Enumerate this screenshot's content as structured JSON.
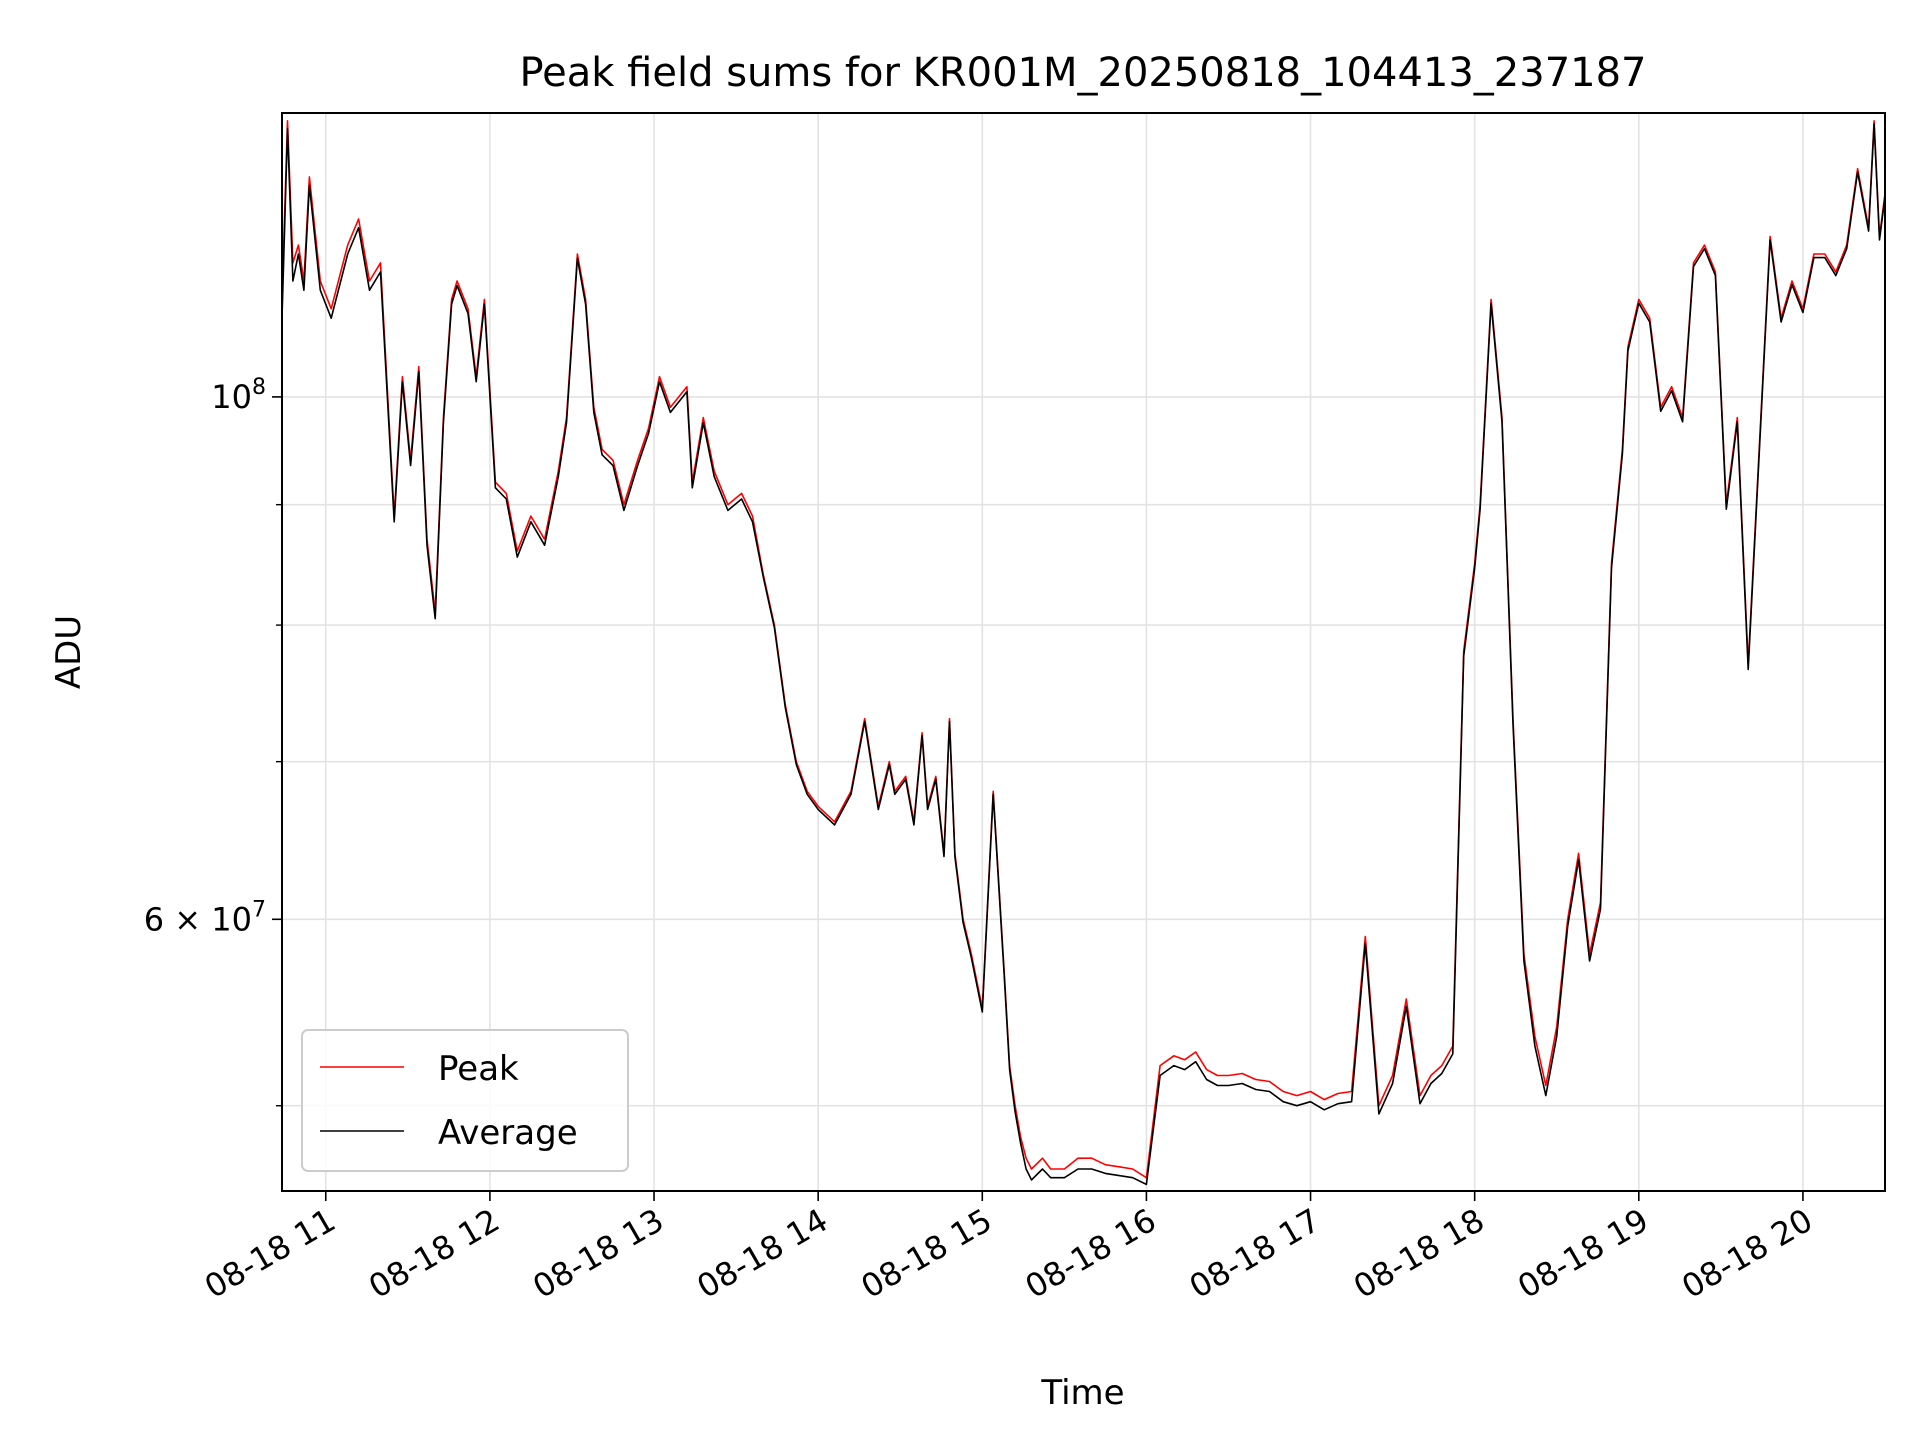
{
  "chart_data": {
    "type": "line",
    "title": "Peak field sums for KR001M_20250818_104413_237187",
    "xlabel": "Time",
    "ylabel": "ADU",
    "yscale": "log",
    "grid": true,
    "legend_position": "lower-left",
    "xlim": [
      "2025-08-18T10:44",
      "2025-08-18T20:30"
    ],
    "ylim": [
      46000000,
      132000000
    ],
    "x_ticks": [
      {
        "value": "2025-08-18T11:00",
        "label": "08-18 11"
      },
      {
        "value": "2025-08-18T12:00",
        "label": "08-18 12"
      },
      {
        "value": "2025-08-18T13:00",
        "label": "08-18 13"
      },
      {
        "value": "2025-08-18T14:00",
        "label": "08-18 14"
      },
      {
        "value": "2025-08-18T15:00",
        "label": "08-18 15"
      },
      {
        "value": "2025-08-18T16:00",
        "label": "08-18 16"
      },
      {
        "value": "2025-08-18T17:00",
        "label": "08-18 17"
      },
      {
        "value": "2025-08-18T18:00",
        "label": "08-18 18"
      },
      {
        "value": "2025-08-18T19:00",
        "label": "08-18 19"
      },
      {
        "value": "2025-08-18T20:00",
        "label": "08-18 20"
      }
    ],
    "y_major_ticks": [
      {
        "value": 100000000,
        "base": "10",
        "exp": "8"
      },
      {
        "value": 60000000,
        "base": "6 × 10",
        "exp": "7"
      }
    ],
    "y_minor_ticks": [
      50000000,
      70000000,
      80000000,
      90000000
    ],
    "x": [
      "2025-08-18T10:44",
      "2025-08-18T10:46",
      "2025-08-18T10:48",
      "2025-08-18T10:50",
      "2025-08-18T10:52",
      "2025-08-18T10:54",
      "2025-08-18T10:58",
      "2025-08-18T11:02",
      "2025-08-18T11:08",
      "2025-08-18T11:12",
      "2025-08-18T11:16",
      "2025-08-18T11:20",
      "2025-08-18T11:25",
      "2025-08-18T11:28",
      "2025-08-18T11:31",
      "2025-08-18T11:34",
      "2025-08-18T11:37",
      "2025-08-18T11:40",
      "2025-08-18T11:43",
      "2025-08-18T11:46",
      "2025-08-18T11:48",
      "2025-08-18T11:52",
      "2025-08-18T11:55",
      "2025-08-18T11:58",
      "2025-08-18T12:02",
      "2025-08-18T12:06",
      "2025-08-18T12:10",
      "2025-08-18T12:15",
      "2025-08-18T12:20",
      "2025-08-18T12:25",
      "2025-08-18T12:28",
      "2025-08-18T12:32",
      "2025-08-18T12:35",
      "2025-08-18T12:38",
      "2025-08-18T12:41",
      "2025-08-18T12:45",
      "2025-08-18T12:49",
      "2025-08-18T12:54",
      "2025-08-18T12:58",
      "2025-08-18T13:02",
      "2025-08-18T13:06",
      "2025-08-18T13:12",
      "2025-08-18T13:14",
      "2025-08-18T13:18",
      "2025-08-18T13:22",
      "2025-08-18T13:27",
      "2025-08-18T13:32",
      "2025-08-18T13:36",
      "2025-08-18T13:40",
      "2025-08-18T13:44",
      "2025-08-18T13:48",
      "2025-08-18T13:52",
      "2025-08-18T13:56",
      "2025-08-18T14:00",
      "2025-08-18T14:06",
      "2025-08-18T14:12",
      "2025-08-18T14:17",
      "2025-08-18T14:22",
      "2025-08-18T14:26",
      "2025-08-18T14:28",
      "2025-08-18T14:32",
      "2025-08-18T14:35",
      "2025-08-18T14:38",
      "2025-08-18T14:40",
      "2025-08-18T14:43",
      "2025-08-18T14:46",
      "2025-08-18T14:48",
      "2025-08-18T14:50",
      "2025-08-18T14:53",
      "2025-08-18T14:56",
      "2025-08-18T15:00",
      "2025-08-18T15:04",
      "2025-08-18T15:08",
      "2025-08-18T15:10",
      "2025-08-18T15:12",
      "2025-08-18T15:14",
      "2025-08-18T15:16",
      "2025-08-18T15:18",
      "2025-08-18T15:22",
      "2025-08-18T15:25",
      "2025-08-18T15:30",
      "2025-08-18T15:35",
      "2025-08-18T15:40",
      "2025-08-18T15:45",
      "2025-08-18T15:50",
      "2025-08-18T15:55",
      "2025-08-18T16:00",
      "2025-08-18T16:05",
      "2025-08-18T16:10",
      "2025-08-18T16:14",
      "2025-08-18T16:18",
      "2025-08-18T16:22",
      "2025-08-18T16:26",
      "2025-08-18T16:30",
      "2025-08-18T16:35",
      "2025-08-18T16:40",
      "2025-08-18T16:45",
      "2025-08-18T16:50",
      "2025-08-18T16:55",
      "2025-08-18T17:00",
      "2025-08-18T17:05",
      "2025-08-18T17:10",
      "2025-08-18T17:15",
      "2025-08-18T17:20",
      "2025-08-18T17:25",
      "2025-08-18T17:30",
      "2025-08-18T17:35",
      "2025-08-18T17:40",
      "2025-08-18T17:44",
      "2025-08-18T17:48",
      "2025-08-18T17:52",
      "2025-08-18T17:56",
      "2025-08-18T18:00",
      "2025-08-18T18:02",
      "2025-08-18T18:06",
      "2025-08-18T18:10",
      "2025-08-18T18:14",
      "2025-08-18T18:18",
      "2025-08-18T18:22",
      "2025-08-18T18:26",
      "2025-08-18T18:30",
      "2025-08-18T18:34",
      "2025-08-18T18:38",
      "2025-08-18T18:42",
      "2025-08-18T18:46",
      "2025-08-18T18:50",
      "2025-08-18T18:54",
      "2025-08-18T18:56",
      "2025-08-18T19:00",
      "2025-08-18T19:04",
      "2025-08-18T19:08",
      "2025-08-18T19:12",
      "2025-08-18T19:16",
      "2025-08-18T19:20",
      "2025-08-18T19:24",
      "2025-08-18T19:28",
      "2025-08-18T19:32",
      "2025-08-18T19:36",
      "2025-08-18T19:40",
      "2025-08-18T19:44",
      "2025-08-18T19:48",
      "2025-08-18T19:52",
      "2025-08-18T19:56",
      "2025-08-18T20:00",
      "2025-08-18T20:04",
      "2025-08-18T20:08",
      "2025-08-18T20:12",
      "2025-08-18T20:16",
      "2025-08-18T20:20",
      "2025-08-18T20:24",
      "2025-08-18T20:26",
      "2025-08-18T20:28",
      "2025-08-18T20:30"
    ],
    "series": [
      {
        "name": "Peak",
        "color": "#ff0000",
        "values": [
          110000000,
          131000000,
          114000000,
          116000000,
          112000000,
          124000000,
          112000000,
          109000000,
          116000000,
          119000000,
          112000000,
          114000000,
          89000000,
          102000000,
          94000000,
          103000000,
          87000000,
          81000000,
          98000000,
          110000000,
          112000000,
          109000000,
          102000000,
          110000000,
          92000000,
          91000000,
          86000000,
          89000000,
          87000000,
          93000000,
          98000000,
          115000000,
          110000000,
          99000000,
          95000000,
          94000000,
          90000000,
          94000000,
          97000000,
          102000000,
          99000000,
          101000000,
          92000000,
          98000000,
          93000000,
          90000000,
          91000000,
          89000000,
          84000000,
          80000000,
          74000000,
          70000000,
          68000000,
          67000000,
          66000000,
          68000000,
          73000000,
          67000000,
          70000000,
          68000000,
          69000000,
          66000000,
          72000000,
          67000000,
          69000000,
          64000000,
          73000000,
          64000000,
          60000000,
          58000000,
          55000000,
          68000000,
          57000000,
          52000000,
          50000000,
          48500000,
          47500000,
          47000000,
          47500000,
          47000000,
          47000000,
          47500000,
          47500000,
          47200000,
          47100000,
          47000000,
          46600000,
          52000000,
          52500000,
          52300000,
          52700000,
          51800000,
          51500000,
          51500000,
          51600000,
          51300000,
          51200000,
          50700000,
          50500000,
          50700000,
          50300000,
          50600000,
          50700000,
          59000000,
          50000000,
          51500000,
          55500000,
          50500000,
          51500000,
          52000000,
          53000000,
          78000000,
          85000000,
          90000000,
          110000000,
          98000000,
          73000000,
          58000000,
          53500000,
          51000000,
          54000000,
          60000000,
          64000000,
          58000000,
          61000000,
          85000000,
          95000000,
          105000000,
          110000000,
          108000000,
          99000000,
          101000000,
          98000000,
          114000000,
          116000000,
          113000000,
          90000000,
          98000000,
          77000000,
          95000000,
          117000000,
          108000000,
          112000000,
          109000000,
          115000000,
          115000000,
          113000000,
          116000000,
          125000000,
          118000000,
          131000000,
          117000000,
          122000000
        ]
      },
      {
        "name": "Average",
        "color": "#000000",
        "values": [
          108000000,
          130000000,
          112000000,
          115000000,
          111000000,
          123000000,
          111000000,
          108000000,
          115000000,
          118000000,
          111000000,
          113000000,
          88500000,
          101500000,
          93500000,
          102500000,
          86500000,
          80500000,
          97500000,
          109500000,
          111500000,
          108500000,
          101500000,
          109500000,
          91500000,
          90500000,
          85500000,
          88500000,
          86500000,
          92500000,
          97500000,
          114500000,
          109500000,
          98500000,
          94500000,
          93500000,
          89500000,
          93500000,
          96500000,
          101500000,
          98500000,
          100500000,
          91500000,
          97500000,
          92500000,
          89500000,
          90500000,
          88500000,
          83800000,
          79800000,
          73800000,
          69800000,
          67800000,
          66800000,
          65800000,
          67800000,
          72800000,
          66800000,
          69800000,
          67800000,
          68800000,
          65800000,
          71800000,
          66800000,
          68800000,
          63800000,
          72800000,
          63800000,
          59800000,
          57800000,
          54800000,
          67800000,
          56800000,
          51800000,
          49700000,
          48200000,
          47000000,
          46500000,
          47000000,
          46600000,
          46600000,
          47000000,
          47000000,
          46800000,
          46700000,
          46600000,
          46300000,
          51500000,
          52000000,
          51800000,
          52200000,
          51300000,
          51000000,
          51000000,
          51100000,
          50800000,
          50700000,
          50200000,
          50000000,
          50200000,
          49800000,
          50100000,
          50200000,
          58600000,
          49600000,
          51100000,
          55100000,
          50100000,
          51100000,
          51600000,
          52600000,
          77600000,
          84600000,
          89600000,
          109600000,
          97600000,
          72600000,
          57600000,
          53000000,
          50500000,
          53500000,
          59600000,
          63600000,
          57600000,
          60600000,
          84600000,
          94600000,
          104600000,
          109600000,
          107600000,
          98600000,
          100600000,
          97600000,
          113600000,
          115600000,
          112600000,
          89600000,
          97600000,
          76600000,
          94600000,
          116600000,
          107600000,
          111600000,
          108600000,
          114600000,
          114600000,
          112600000,
          115600000,
          124600000,
          117600000,
          130600000,
          116600000,
          121600000
        ]
      }
    ]
  }
}
